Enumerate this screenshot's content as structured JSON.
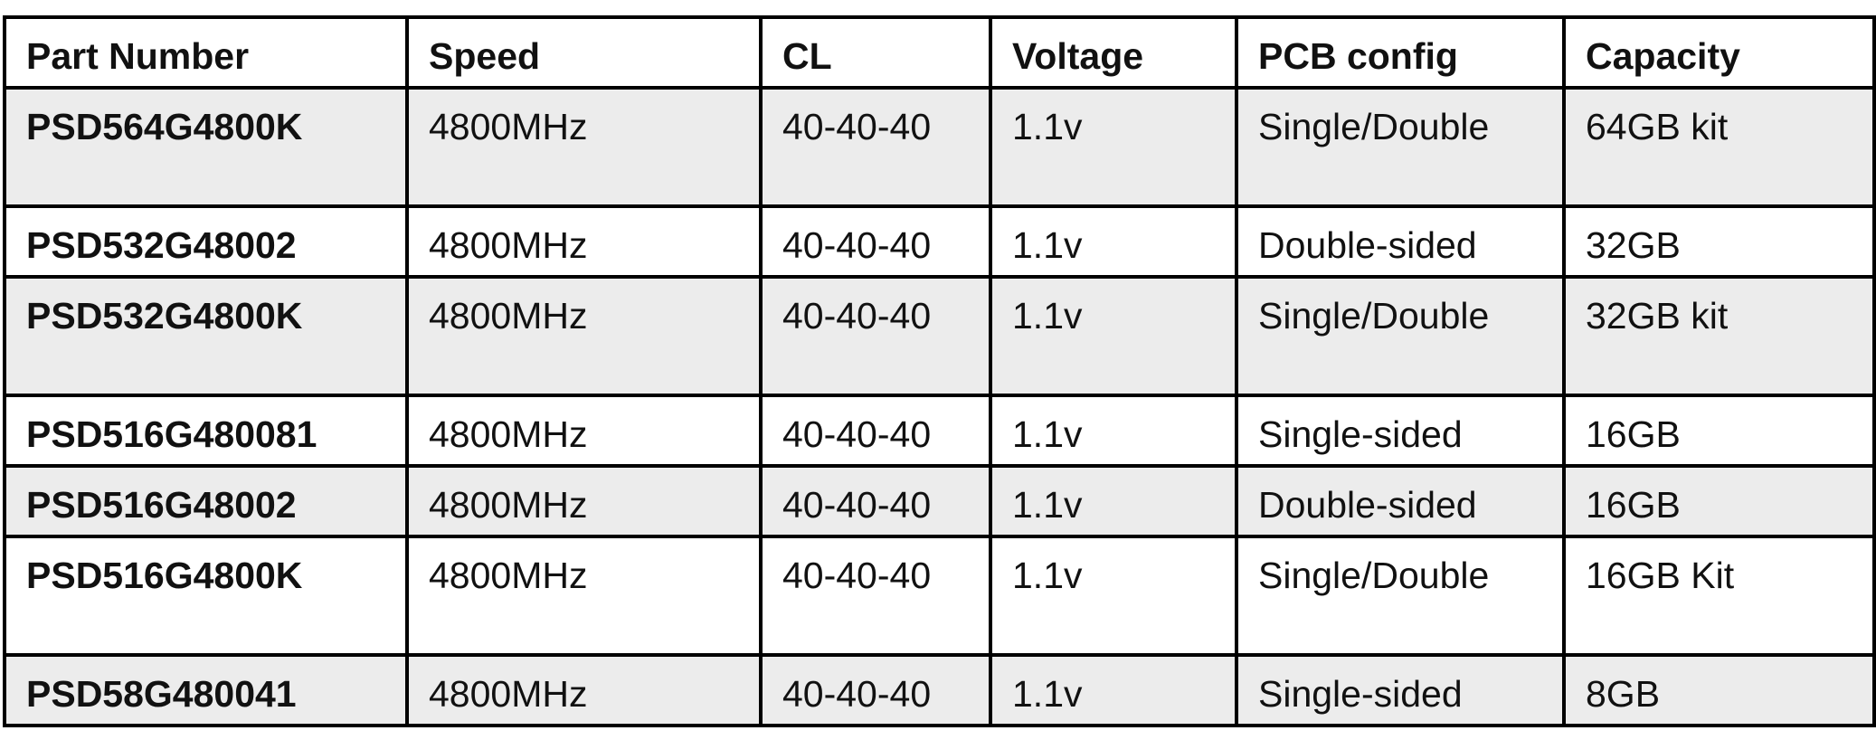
{
  "table": {
    "columns": [
      "Part Number",
      "Speed",
      "CL",
      "Voltage",
      "PCB config",
      "Capacity"
    ],
    "rows": [
      [
        "PSD564G4800K",
        "4800MHz",
        "40-40-40",
        "1.1v",
        "Single/Double",
        "64GB kit"
      ],
      [
        "PSD532G48002",
        "4800MHz",
        "40-40-40",
        "1.1v",
        "Double-sided",
        "32GB"
      ],
      [
        "PSD532G4800K",
        "4800MHz",
        "40-40-40",
        "1.1v",
        "Single/Double",
        "32GB kit"
      ],
      [
        "PSD516G480081",
        "4800MHz",
        "40-40-40",
        "1.1v",
        "Single-sided",
        "16GB"
      ],
      [
        "PSD516G48002",
        "4800MHz",
        "40-40-40",
        "1.1v",
        "Double-sided",
        "16GB"
      ],
      [
        "PSD516G4800K",
        "4800MHz",
        "40-40-40",
        "1.1v",
        "Single/Double",
        "16GB Kit"
      ],
      [
        "PSD58G480041",
        "4800MHz",
        "40-40-40",
        "1.1v",
        "Single-sided",
        "8GB"
      ]
    ]
  }
}
